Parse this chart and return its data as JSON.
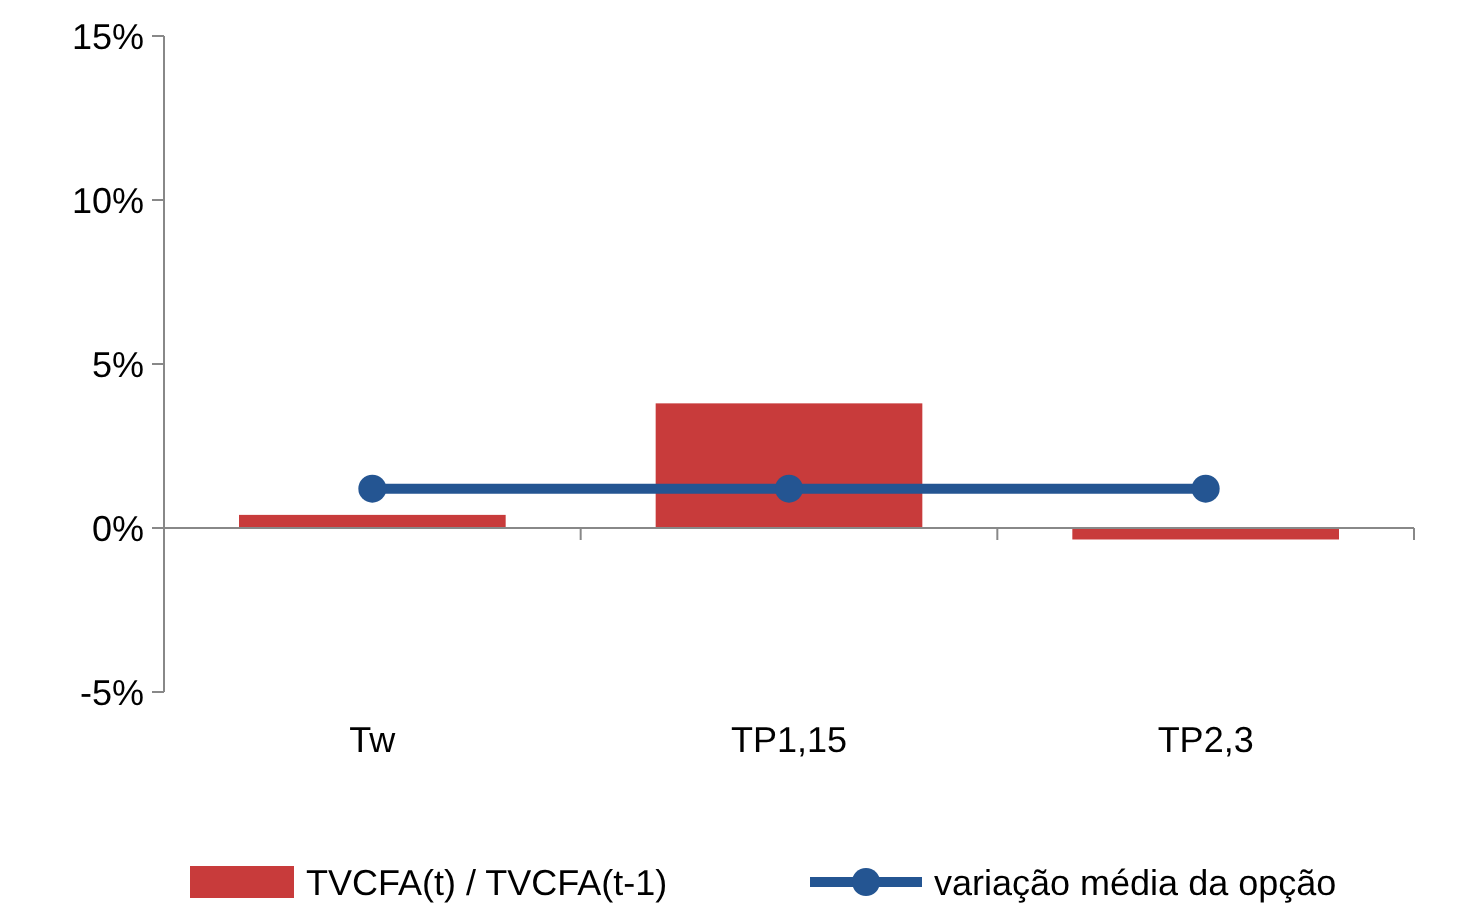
{
  "chart_data": {
    "type": "bar",
    "categories": [
      "Tw",
      "TP1,15",
      "TP2,3"
    ],
    "series": [
      {
        "name": "TVCFA(t) / TVCFA(t-1)",
        "color": "#c83b3b",
        "values": [
          0.4,
          3.8,
          -0.35
        ]
      },
      {
        "name": "variação média da opção",
        "type": "line",
        "color": "#245592",
        "values": [
          1.2,
          1.2,
          1.2
        ]
      }
    ],
    "ylim": [
      -5,
      15
    ],
    "yticks": [
      {
        "value": -5,
        "label": "-5%"
      },
      {
        "value": 0,
        "label": "0%"
      },
      {
        "value": 5,
        "label": "5%"
      },
      {
        "value": 10,
        "label": "10%"
      },
      {
        "value": 15,
        "label": "15%"
      }
    ],
    "legend": "bottom",
    "marker": "circle"
  }
}
